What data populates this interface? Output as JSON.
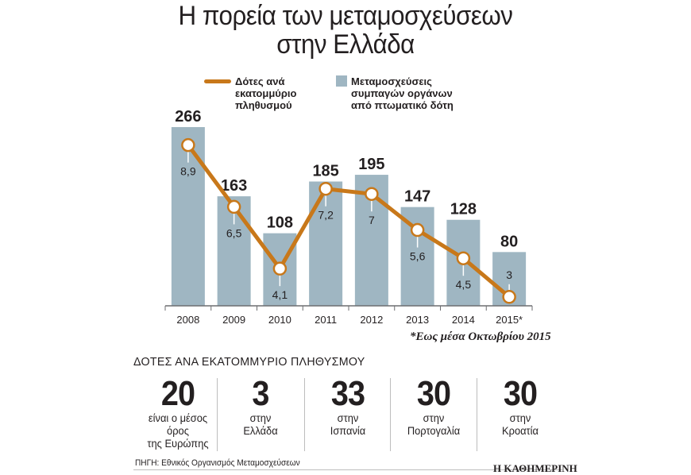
{
  "title_line1": "Η πορεία των μεταμοσχεύσεων",
  "title_line2": "στην Ελλάδα",
  "legend": {
    "line_label": "Δότες ανά\nεκατομμύριο\nπληθυσμού",
    "bar_label": "Μεταμοσχεύσεις\nσυμπαγών οργάνων\nαπό πτωματικό δότη"
  },
  "chart_data": {
    "type": "bar",
    "categories": [
      "2008",
      "2009",
      "2010",
      "2011",
      "2012",
      "2013",
      "2014",
      "2015*"
    ],
    "series": [
      {
        "name": "Μεταμοσχεύσεις συμπαγών οργάνων από πτωματικό δότη",
        "type": "bar",
        "values": [
          266,
          163,
          108,
          185,
          195,
          147,
          128,
          80
        ],
        "color": "#9fb6c2"
      },
      {
        "name": "Δότες ανά εκατομμύριο πληθυσμού",
        "type": "line",
        "values": [
          8.9,
          6.5,
          4.1,
          7.2,
          7,
          5.6,
          4.5,
          3
        ],
        "labels": [
          "8,9",
          "6,5",
          "4,1",
          "7,2",
          "7",
          "5,6",
          "4,5",
          "3"
        ],
        "color": "#c8781a"
      }
    ],
    "title": "Η πορεία των μεταμοσχεύσεων στην Ελλάδα",
    "xlabel": "",
    "ylabel": ""
  },
  "note": "*Εως μέσα Οκτωβρίου 2015",
  "stats": {
    "title": "ΔΟΤΕΣ ΑΝΑ ΕΚΑΤΟΜΜΥΡΙΟ ΠΛΗΘΥΣΜΟΥ",
    "items": [
      {
        "value": "20",
        "label": "είναι ο μέσος\nόρος\nτης Ευρώπης"
      },
      {
        "value": "3",
        "label": "στην\nΕλλάδα"
      },
      {
        "value": "33",
        "label": "στην\nΙσπανία"
      },
      {
        "value": "30",
        "label": "στην\nΠορτογαλία"
      },
      {
        "value": "30",
        "label": "στην\nΚροατία"
      }
    ]
  },
  "source": "ΠΗΓΗ: Εθνικός Οργανισμός Μεταμοσχεύσεων",
  "brand": "Η ΚΑΘΗΜΕΡΙΝΗ"
}
